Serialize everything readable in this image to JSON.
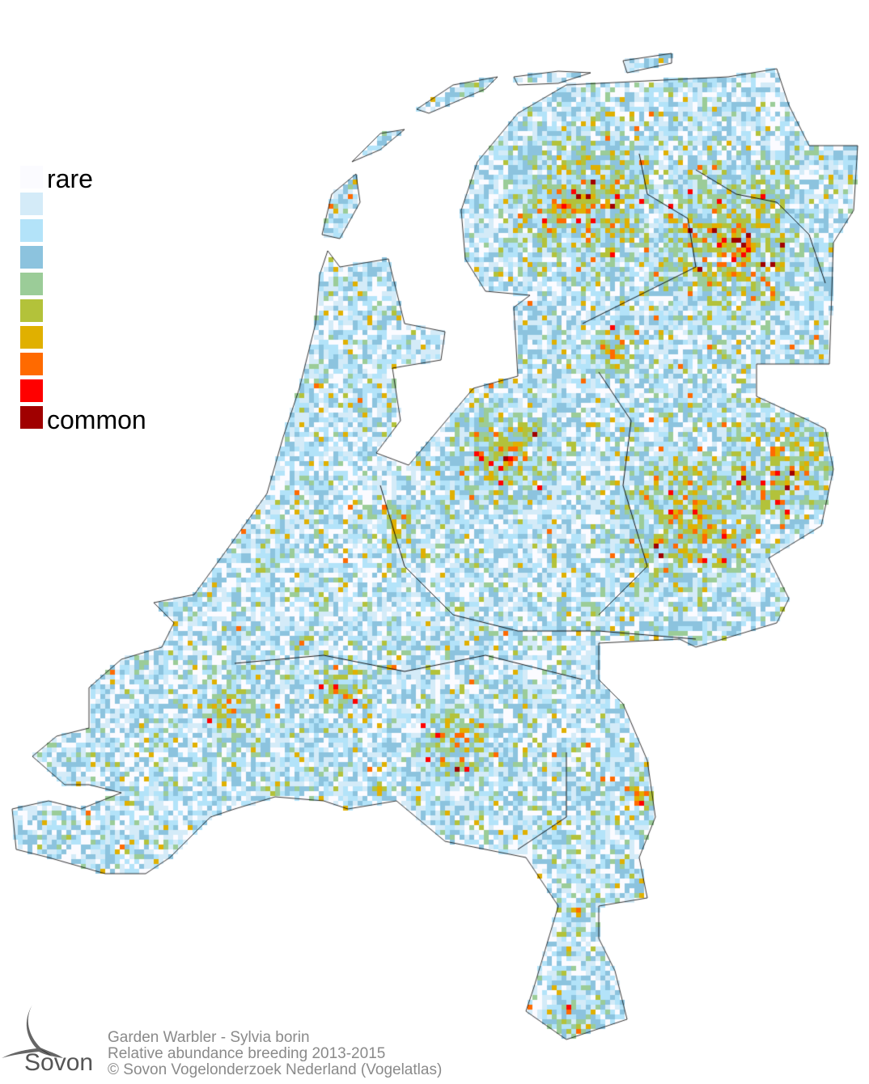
{
  "legend": {
    "top_label": "rare",
    "bottom_label": "common",
    "colors": [
      "#fbfbff",
      "#d4ebf8",
      "#b3e3f9",
      "#8cc3de",
      "#9bcc98",
      "#b3c23a",
      "#e0b000",
      "#ff6a00",
      "#ff0000",
      "#a00000"
    ]
  },
  "footer": {
    "line1": "Garden Warbler - Sylvia borin",
    "line2": "Relative abundance breeding 2013-2015",
    "line3": "© Sovon Vogelonderzoek Nederland (Vogelatlas)"
  },
  "logo": {
    "text": "Sovon"
  }
}
